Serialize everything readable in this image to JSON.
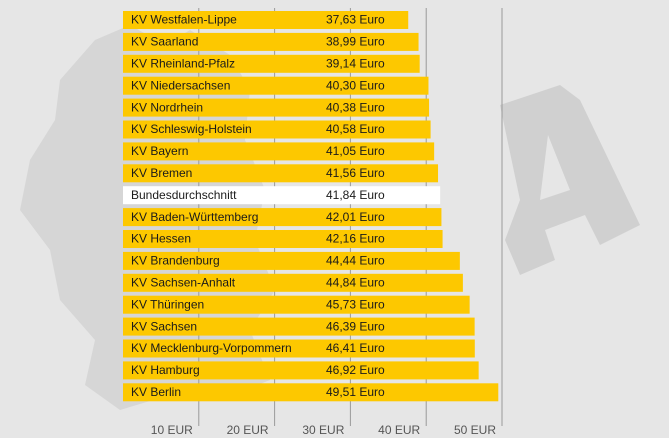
{
  "chart_data": {
    "type": "hbar",
    "categories": [
      "KV Westfalen-Lippe",
      "KV Saarland",
      "KV Rheinland-Pfalz",
      "KV Niedersachsen",
      "KV Nordrhein",
      "KV Schleswig-Holstein",
      "KV Bayern",
      "KV Bremen",
      "Bundesdurchschnitt",
      "KV Baden-Württemberg",
      "KV Hessen",
      "KV Brandenburg",
      "KV Sachsen-Anhalt",
      "KV Thüringen",
      "KV Sachsen",
      "KV Mecklenburg-Vorpommern",
      "KV Hamburg",
      "KV Berlin"
    ],
    "values": [
      37.63,
      38.99,
      39.14,
      40.3,
      40.38,
      40.58,
      41.05,
      41.56,
      41.84,
      42.01,
      42.16,
      44.44,
      44.84,
      45.73,
      46.39,
      46.41,
      46.92,
      49.51
    ],
    "value_labels": [
      "37,63 Euro",
      "38,99 Euro",
      "39,14 Euro",
      "40,30 Euro",
      "40,38 Euro",
      "40,58 Euro",
      "41,05 Euro",
      "41,56 Euro",
      "41,84 Euro",
      "42,01 Euro",
      "42,16 Euro",
      "44,44 Euro",
      "44,84 Euro",
      "45,73 Euro",
      "46,39 Euro",
      "46,41 Euro",
      "46,92 Euro",
      "49,51 Euro"
    ],
    "colors": [
      "#fdc800",
      "#fdc800",
      "#fdc800",
      "#fdc800",
      "#fdc800",
      "#fdc800",
      "#fdc800",
      "#fdc800",
      "#ffffff",
      "#fdc800",
      "#fdc800",
      "#fdc800",
      "#fdc800",
      "#fdc800",
      "#fdc800",
      "#fdc800",
      "#fdc800",
      "#fdc800"
    ],
    "xlim": [
      0,
      50
    ],
    "xticks": [
      {
        "value": 10,
        "label": "10 EUR"
      },
      {
        "value": 20,
        "label": "20 EUR"
      },
      {
        "value": 30,
        "label": "30 EUR"
      },
      {
        "value": 40,
        "label": "40 EUR"
      },
      {
        "value": 50,
        "label": "50 EUR"
      }
    ],
    "grid": true
  }
}
